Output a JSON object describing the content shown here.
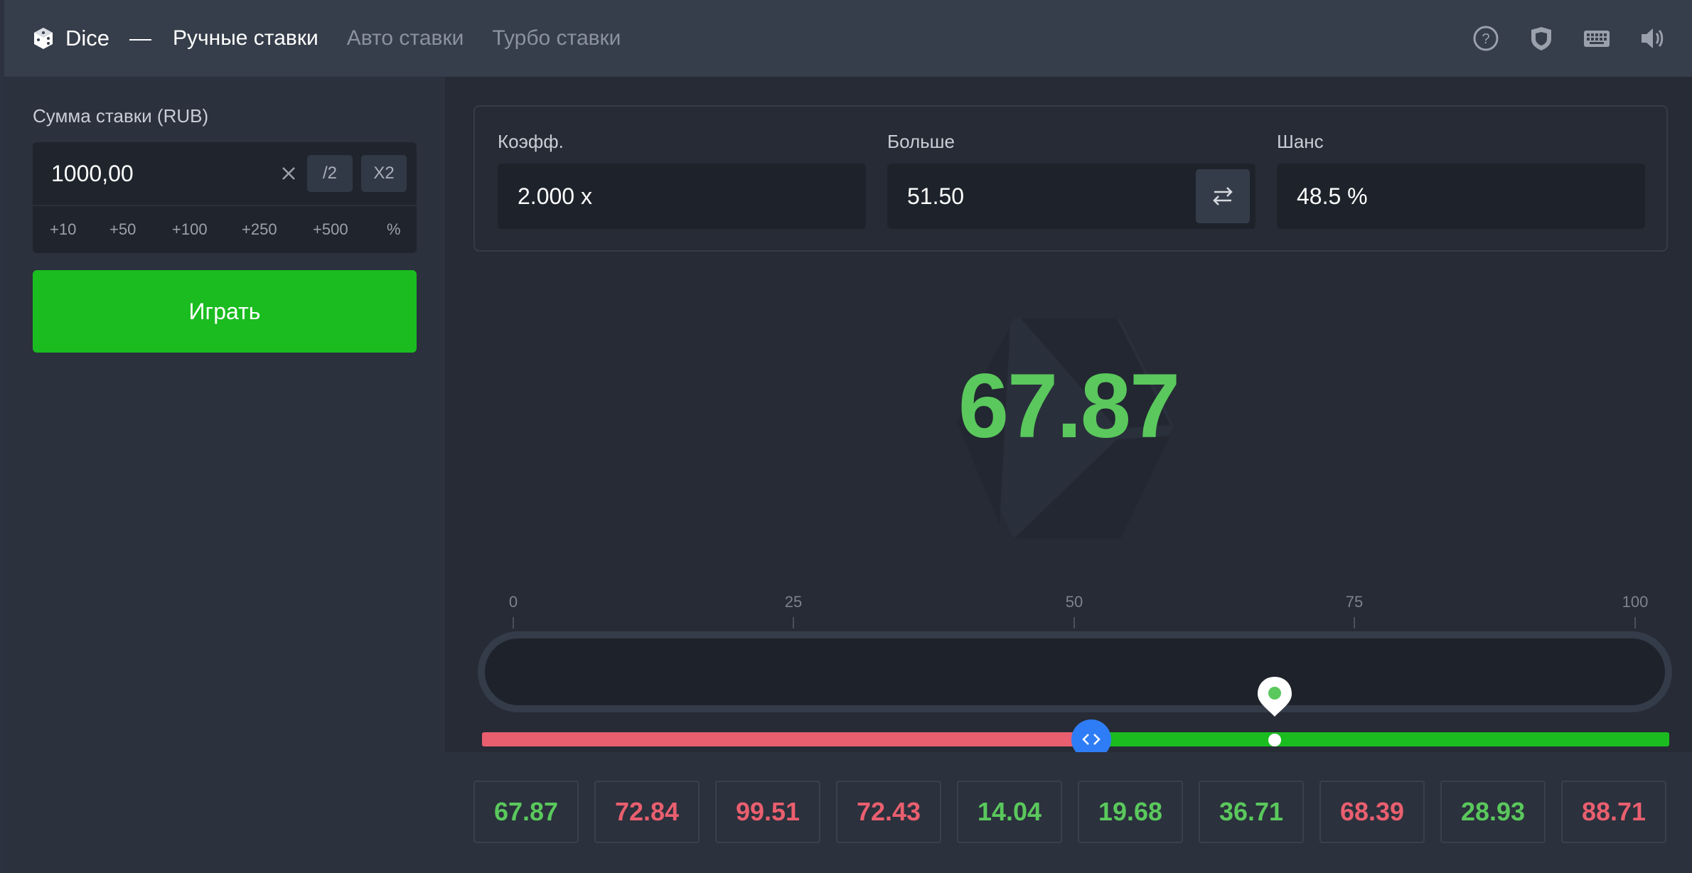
{
  "header": {
    "brand": "Dice",
    "separator": "—",
    "tabs": [
      {
        "label": "Ручные ставки",
        "active": true
      },
      {
        "label": "Авто ставки",
        "active": false
      },
      {
        "label": "Турбо ставки",
        "active": false
      }
    ],
    "icons": [
      "help-icon",
      "shield-icon",
      "keyboard-icon",
      "sound-icon"
    ]
  },
  "bet": {
    "label": "Сумма ставки (RUB)",
    "amount": "1000,00",
    "half_label": "/2",
    "double_label": "X2",
    "quick": [
      "+10",
      "+50",
      "+100",
      "+250",
      "+500",
      "%"
    ]
  },
  "play_button": "Играть",
  "params": {
    "multiplier_label": "Коэфф.",
    "multiplier_value": "2.000 x",
    "target_label": "Больше",
    "target_value": "51.50",
    "chance_label": "Шанс",
    "chance_value": "48.5 %"
  },
  "result": "67.87",
  "scale": {
    "ticks": [
      "0",
      "25",
      "50",
      "75",
      "100"
    ],
    "target": 51.5,
    "roll": 67.87
  },
  "history": [
    {
      "value": "67.87",
      "win": true
    },
    {
      "value": "72.84",
      "win": false
    },
    {
      "value": "99.51",
      "win": false
    },
    {
      "value": "72.43",
      "win": false
    },
    {
      "value": "14.04",
      "win": true
    },
    {
      "value": "19.68",
      "win": true
    },
    {
      "value": "36.71",
      "win": true
    },
    {
      "value": "68.39",
      "win": false
    },
    {
      "value": "28.93",
      "win": true
    },
    {
      "value": "88.71",
      "win": false
    }
  ],
  "colors": {
    "win": "#5ac85c",
    "lose": "#e95f6f",
    "play": "#1abc20",
    "handle": "#2f7df6"
  }
}
